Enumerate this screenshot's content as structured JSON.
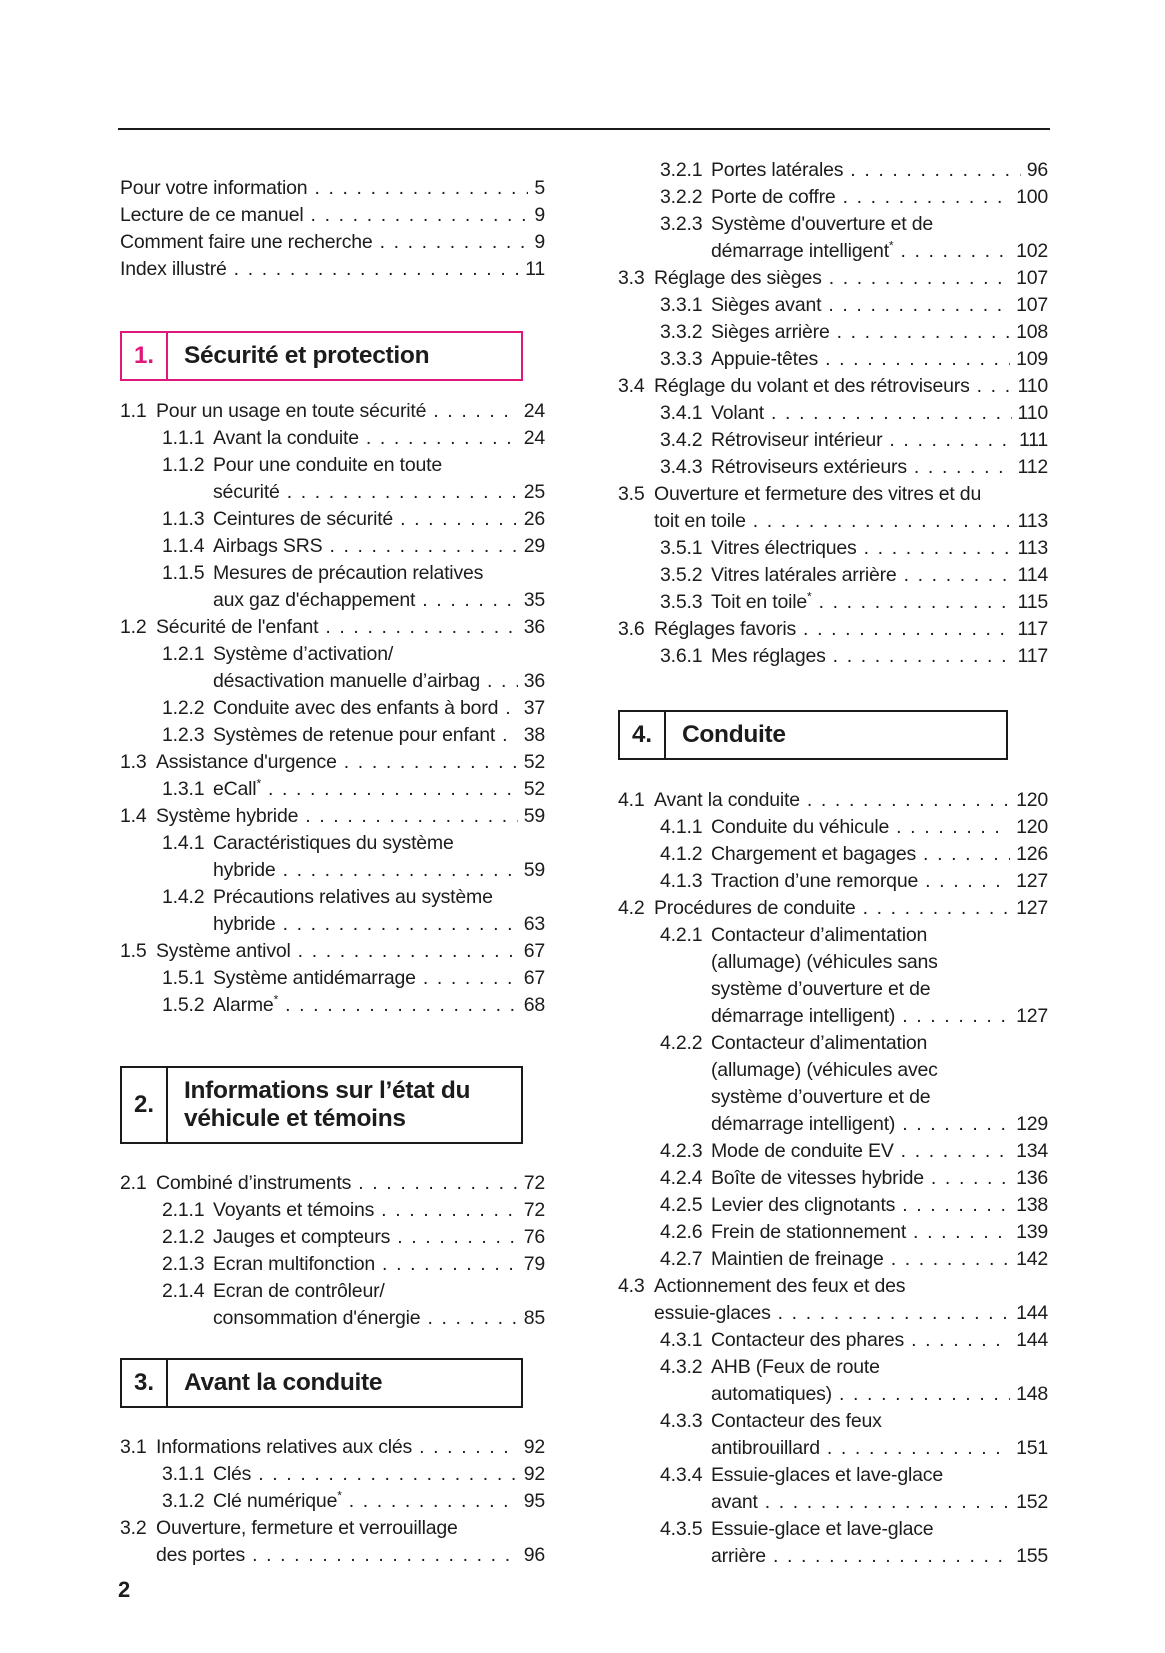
{
  "page_label": "2",
  "accent_color": "#e0187c",
  "columns": {
    "left": [
      {
        "type": "list",
        "name": "frontmatter",
        "entries": [
          {
            "level": 0,
            "lines": [
              "Pour votre information"
            ],
            "page": "5"
          },
          {
            "level": 0,
            "lines": [
              "Lecture de ce manuel"
            ],
            "page": "9"
          },
          {
            "level": 0,
            "lines": [
              "Comment faire une recherche"
            ],
            "page": "9"
          },
          {
            "level": 0,
            "lines": [
              "Index illustré"
            ],
            "page": "11"
          }
        ]
      },
      {
        "type": "chapter",
        "name": "chapter-1",
        "num": "1.",
        "title": "Sécurité et protection",
        "accent": true
      },
      {
        "type": "list",
        "name": "chapter-1-entries",
        "entries": [
          {
            "level": 1,
            "num": "1.1",
            "lines": [
              "Pour un usage en toute sécurité"
            ],
            "page": "24"
          },
          {
            "level": 2,
            "num": "1.1.1",
            "lines": [
              "Avant la conduite"
            ],
            "page": "24"
          },
          {
            "level": 2,
            "num": "1.1.2",
            "lines": [
              "Pour une conduite en toute",
              "sécurité"
            ],
            "page": "25"
          },
          {
            "level": 2,
            "num": "1.1.3",
            "lines": [
              "Ceintures de sécurité"
            ],
            "page": "26"
          },
          {
            "level": 2,
            "num": "1.1.4",
            "lines": [
              "Airbags SRS"
            ],
            "page": "29"
          },
          {
            "level": 2,
            "num": "1.1.5",
            "lines": [
              "Mesures de précaution relatives",
              "aux gaz d'échappement"
            ],
            "page": "35"
          },
          {
            "level": 1,
            "num": "1.2",
            "lines": [
              "Sécurité de l'enfant"
            ],
            "page": "36"
          },
          {
            "level": 2,
            "num": "1.2.1",
            "lines": [
              "Système d’activation/",
              "désactivation manuelle d’airbag"
            ],
            "page": "36"
          },
          {
            "level": 2,
            "num": "1.2.2",
            "lines": [
              "Conduite avec des enfants à bord"
            ],
            "page": "37"
          },
          {
            "level": 2,
            "num": "1.2.3",
            "lines": [
              "Systèmes de retenue pour enfant"
            ],
            "page": "38"
          },
          {
            "level": 1,
            "num": "1.3",
            "lines": [
              "Assistance d'urgence"
            ],
            "page": "52"
          },
          {
            "level": 2,
            "num": "1.3.1",
            "lines": [
              "eCall*"
            ],
            "page": "52"
          },
          {
            "level": 1,
            "num": "1.4",
            "lines": [
              "Système hybride"
            ],
            "page": "59"
          },
          {
            "level": 2,
            "num": "1.4.1",
            "lines": [
              "Caractéristiques du système",
              "hybride"
            ],
            "page": "59"
          },
          {
            "level": 2,
            "num": "1.4.2",
            "lines": [
              "Précautions relatives au système",
              "hybride"
            ],
            "page": "63"
          },
          {
            "level": 1,
            "num": "1.5",
            "lines": [
              "Système antivol"
            ],
            "page": "67"
          },
          {
            "level": 2,
            "num": "1.5.1",
            "lines": [
              "Système antidémarrage"
            ],
            "page": "67"
          },
          {
            "level": 2,
            "num": "1.5.2",
            "lines": [
              "Alarme*"
            ],
            "page": "68"
          }
        ]
      },
      {
        "type": "chapter",
        "name": "chapter-2",
        "num": "2.",
        "title": "Informations sur l’état du véhicule et témoins",
        "accent": false
      },
      {
        "type": "list",
        "name": "chapter-2-entries",
        "entries": [
          {
            "level": 1,
            "num": "2.1",
            "lines": [
              "Combiné d’instruments"
            ],
            "page": "72"
          },
          {
            "level": 2,
            "num": "2.1.1",
            "lines": [
              "Voyants et témoins"
            ],
            "page": "72"
          },
          {
            "level": 2,
            "num": "2.1.2",
            "lines": [
              "Jauges et compteurs"
            ],
            "page": "76"
          },
          {
            "level": 2,
            "num": "2.1.3",
            "lines": [
              "Ecran multifonction"
            ],
            "page": "79"
          },
          {
            "level": 2,
            "num": "2.1.4",
            "lines": [
              "Ecran de contrôleur/",
              "consommation d'énergie"
            ],
            "page": "85"
          }
        ]
      },
      {
        "type": "chapter",
        "name": "chapter-3",
        "num": "3.",
        "title": "Avant la conduite",
        "accent": false
      },
      {
        "type": "list",
        "name": "chapter-3-entries-left",
        "entries": [
          {
            "level": 1,
            "num": "3.1",
            "lines": [
              "Informations relatives aux clés"
            ],
            "page": "92"
          },
          {
            "level": 2,
            "num": "3.1.1",
            "lines": [
              "Clés"
            ],
            "page": "92"
          },
          {
            "level": 2,
            "num": "3.1.2",
            "lines": [
              "Clé numérique*"
            ],
            "page": "95"
          },
          {
            "level": 1,
            "num": "3.2",
            "lines": [
              "Ouverture, fermeture et verrouillage",
              "des portes"
            ],
            "page": "96"
          }
        ]
      }
    ],
    "right": [
      {
        "type": "list",
        "name": "chapter-3-entries-right",
        "entries": [
          {
            "level": 2,
            "num": "3.2.1",
            "lines": [
              "Portes latérales"
            ],
            "page": "96"
          },
          {
            "level": 2,
            "num": "3.2.2",
            "lines": [
              "Porte de coffre"
            ],
            "page": "100"
          },
          {
            "level": 2,
            "num": "3.2.3",
            "lines": [
              "Système d'ouverture et de",
              "démarrage intelligent*"
            ],
            "page": "102"
          },
          {
            "level": 1,
            "num": "3.3",
            "lines": [
              "Réglage des sièges"
            ],
            "page": "107"
          },
          {
            "level": 2,
            "num": "3.3.1",
            "lines": [
              "Sièges avant"
            ],
            "page": "107"
          },
          {
            "level": 2,
            "num": "3.3.2",
            "lines": [
              "Sièges arrière"
            ],
            "page": "108"
          },
          {
            "level": 2,
            "num": "3.3.3",
            "lines": [
              "Appuie-têtes"
            ],
            "page": "109"
          },
          {
            "level": 1,
            "num": "3.4",
            "lines": [
              "Réglage du volant et des rétroviseurs"
            ],
            "page": "110"
          },
          {
            "level": 2,
            "num": "3.4.1",
            "lines": [
              "Volant"
            ],
            "page": "110"
          },
          {
            "level": 2,
            "num": "3.4.2",
            "lines": [
              "Rétroviseur intérieur"
            ],
            "page": "111"
          },
          {
            "level": 2,
            "num": "3.4.3",
            "lines": [
              "Rétroviseurs extérieurs"
            ],
            "page": "112"
          },
          {
            "level": 1,
            "num": "3.5",
            "lines": [
              "Ouverture et fermeture des vitres et du",
              "toit en toile"
            ],
            "page": "113"
          },
          {
            "level": 2,
            "num": "3.5.1",
            "lines": [
              "Vitres électriques"
            ],
            "page": "113"
          },
          {
            "level": 2,
            "num": "3.5.2",
            "lines": [
              "Vitres latérales arrière"
            ],
            "page": "114"
          },
          {
            "level": 2,
            "num": "3.5.3",
            "lines": [
              "Toit en toile*"
            ],
            "page": "115"
          },
          {
            "level": 1,
            "num": "3.6",
            "lines": [
              "Réglages favoris"
            ],
            "page": "117"
          },
          {
            "level": 2,
            "num": "3.6.1",
            "lines": [
              "Mes réglages"
            ],
            "page": "117"
          }
        ]
      },
      {
        "type": "chapter",
        "name": "chapter-4",
        "num": "4.",
        "title": "Conduite",
        "accent": false
      },
      {
        "type": "list",
        "name": "chapter-4-entries",
        "entries": [
          {
            "level": 1,
            "num": "4.1",
            "lines": [
              "Avant la conduite"
            ],
            "page": "120"
          },
          {
            "level": 2,
            "num": "4.1.1",
            "lines": [
              "Conduite du véhicule"
            ],
            "page": "120"
          },
          {
            "level": 2,
            "num": "4.1.2",
            "lines": [
              "Chargement et bagages"
            ],
            "page": "126"
          },
          {
            "level": 2,
            "num": "4.1.3",
            "lines": [
              "Traction d’une remorque"
            ],
            "page": "127"
          },
          {
            "level": 1,
            "num": "4.2",
            "lines": [
              "Procédures de conduite"
            ],
            "page": "127"
          },
          {
            "level": 2,
            "num": "4.2.1",
            "lines": [
              "Contacteur d’alimentation",
              "(allumage) (véhicules sans",
              "système d’ouverture et de",
              "démarrage intelligent)"
            ],
            "page": "127"
          },
          {
            "level": 2,
            "num": "4.2.2",
            "lines": [
              "Contacteur d’alimentation",
              "(allumage) (véhicules avec",
              "système d’ouverture et de",
              "démarrage intelligent)"
            ],
            "page": "129"
          },
          {
            "level": 2,
            "num": "4.2.3",
            "lines": [
              "Mode de conduite EV"
            ],
            "page": "134"
          },
          {
            "level": 2,
            "num": "4.2.4",
            "lines": [
              "Boîte de vitesses hybride"
            ],
            "page": "136"
          },
          {
            "level": 2,
            "num": "4.2.5",
            "lines": [
              "Levier des clignotants"
            ],
            "page": "138"
          },
          {
            "level": 2,
            "num": "4.2.6",
            "lines": [
              "Frein de stationnement"
            ],
            "page": "139"
          },
          {
            "level": 2,
            "num": "4.2.7",
            "lines": [
              "Maintien de freinage"
            ],
            "page": "142"
          },
          {
            "level": 1,
            "num": "4.3",
            "lines": [
              "Actionnement des feux et des",
              "essuie-glaces"
            ],
            "page": "144"
          },
          {
            "level": 2,
            "num": "4.3.1",
            "lines": [
              "Contacteur des phares"
            ],
            "page": "144"
          },
          {
            "level": 2,
            "num": "4.3.2",
            "lines": [
              "AHB (Feux de route",
              "automatiques)"
            ],
            "page": "148"
          },
          {
            "level": 2,
            "num": "4.3.3",
            "lines": [
              "Contacteur des feux",
              "antibrouillard"
            ],
            "page": "151"
          },
          {
            "level": 2,
            "num": "4.3.4",
            "lines": [
              "Essuie-glaces et lave-glace",
              "avant"
            ],
            "page": "152"
          },
          {
            "level": 2,
            "num": "4.3.5",
            "lines": [
              "Essuie-glace et lave-glace",
              "arrière"
            ],
            "page": "155"
          }
        ]
      }
    ]
  }
}
